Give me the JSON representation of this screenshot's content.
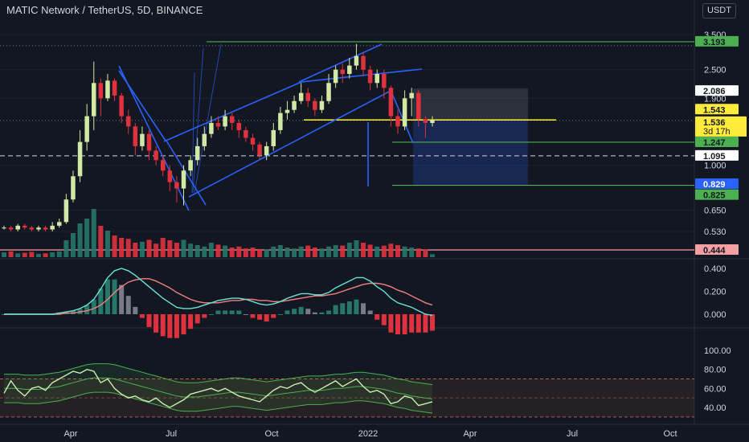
{
  "header": {
    "symbol_title": "MATIC Network / TetherUS, 5D, BINANCE",
    "currency_button": "USDT"
  },
  "colors": {
    "background": "#131722",
    "up_candle": "#d4e8a6",
    "down_candle": "#e0323e",
    "channel": "#2962ff",
    "target_green": "#4caf50",
    "price_yellow": "#ffeb3b",
    "volume_green": "#26776a",
    "volume_red": "#e0323e",
    "macd_line": "#69e2d6",
    "signal_line": "#f08080",
    "rsi_line": "#c8f0b0",
    "rsi_band": "#4caf50",
    "stop_pink": "#f4a0a0"
  },
  "price_axis": {
    "ticks": [
      "3.500",
      "2.500",
      "1.900",
      "1.000",
      "0.650",
      "0.530"
    ],
    "badges": [
      {
        "label": "3.193",
        "style": "green"
      },
      {
        "label": "2.086",
        "style": "white"
      },
      {
        "label": "1.543",
        "style": "yellow"
      },
      {
        "label": "1.536",
        "style": "yellow"
      },
      {
        "label": "3d 17h",
        "style": "yellow-sub"
      },
      {
        "label": "1.247",
        "style": "green"
      },
      {
        "label": "1.095",
        "style": "white"
      },
      {
        "label": "0.829",
        "style": "blue"
      },
      {
        "label": "0.825",
        "style": "green"
      },
      {
        "label": "0.444",
        "style": "pink"
      }
    ]
  },
  "macd_axis": {
    "ticks": [
      "0.400",
      "0.200",
      "0.000"
    ]
  },
  "rsi_axis": {
    "ticks": [
      "100.00",
      "80.00",
      "60.00",
      "40.00"
    ]
  },
  "time_axis": {
    "labels": [
      "Apr",
      "Jul",
      "Oct",
      "2022",
      "Apr",
      "Jul",
      "Oct"
    ]
  },
  "chart_data": [
    {
      "type": "candlestick",
      "title": "MATIC Network / TetherUS, 5D, BINANCE",
      "scale": "log",
      "ylim": [
        0.444,
        3.9
      ],
      "x_start": "2021-03-01",
      "x_end": "2022-11-01",
      "candles": [
        [
          0.55,
          0.55,
          0.56,
          0.54
        ],
        [
          0.55,
          0.54,
          0.56,
          0.53
        ],
        [
          0.54,
          0.56,
          0.57,
          0.53
        ],
        [
          0.56,
          0.55,
          0.57,
          0.54
        ],
        [
          0.55,
          0.54,
          0.56,
          0.53
        ],
        [
          0.54,
          0.55,
          0.56,
          0.53
        ],
        [
          0.55,
          0.54,
          0.56,
          0.53
        ],
        [
          0.54,
          0.56,
          0.58,
          0.53
        ],
        [
          0.56,
          0.58,
          0.6,
          0.55
        ],
        [
          0.58,
          0.72,
          0.76,
          0.57
        ],
        [
          0.72,
          0.9,
          0.95,
          0.7
        ],
        [
          0.9,
          1.25,
          1.4,
          0.85
        ],
        [
          1.25,
          1.6,
          1.8,
          1.15
        ],
        [
          1.6,
          2.2,
          2.7,
          1.4
        ],
        [
          2.2,
          1.9,
          2.3,
          1.6
        ],
        [
          1.9,
          2.25,
          2.4,
          1.85
        ],
        [
          2.25,
          1.95,
          2.3,
          1.85
        ],
        [
          1.95,
          1.6,
          2.0,
          1.5
        ],
        [
          1.6,
          1.45,
          1.7,
          1.35
        ],
        [
          1.45,
          1.2,
          1.5,
          1.1
        ],
        [
          1.2,
          1.35,
          1.45,
          1.15
        ],
        [
          1.35,
          1.15,
          1.4,
          1.05
        ],
        [
          1.15,
          1.05,
          1.2,
          1.0
        ],
        [
          1.05,
          0.95,
          1.1,
          0.9
        ],
        [
          0.95,
          0.85,
          1.0,
          0.78
        ],
        [
          0.85,
          0.8,
          0.9,
          0.7
        ],
        [
          0.8,
          0.95,
          1.0,
          0.68
        ],
        [
          0.95,
          1.05,
          1.1,
          0.9
        ],
        [
          1.05,
          1.2,
          1.3,
          1.0
        ],
        [
          1.2,
          1.35,
          1.45,
          1.15
        ],
        [
          1.35,
          1.5,
          1.6,
          1.3
        ],
        [
          1.5,
          1.45,
          1.6,
          1.4
        ],
        [
          1.45,
          1.6,
          1.7,
          1.4
        ],
        [
          1.6,
          1.5,
          1.65,
          1.4
        ],
        [
          1.5,
          1.4,
          1.55,
          1.3
        ],
        [
          1.4,
          1.3,
          1.45,
          1.25
        ],
        [
          1.3,
          1.22,
          1.35,
          1.15
        ],
        [
          1.22,
          1.1,
          1.25,
          1.05
        ],
        [
          1.1,
          1.2,
          1.25,
          1.05
        ],
        [
          1.2,
          1.4,
          1.5,
          1.15
        ],
        [
          1.4,
          1.65,
          1.75,
          1.35
        ],
        [
          1.65,
          1.7,
          1.85,
          1.55
        ],
        [
          1.7,
          1.85,
          1.95,
          1.65
        ],
        [
          1.85,
          2.0,
          2.2,
          1.8
        ],
        [
          2.0,
          1.85,
          2.1,
          1.75
        ],
        [
          1.85,
          1.7,
          1.9,
          1.6
        ],
        [
          1.7,
          1.85,
          1.95,
          1.65
        ],
        [
          1.85,
          2.2,
          2.4,
          1.8
        ],
        [
          2.2,
          2.5,
          2.6,
          2.1
        ],
        [
          2.5,
          2.4,
          2.65,
          2.2
        ],
        [
          2.4,
          2.6,
          2.8,
          2.3
        ],
        [
          2.6,
          2.85,
          3.2,
          2.5
        ],
        [
          2.85,
          2.5,
          2.95,
          2.35
        ],
        [
          2.5,
          2.2,
          2.6,
          2.05
        ],
        [
          2.2,
          2.4,
          2.5,
          2.1
        ],
        [
          2.4,
          2.1,
          2.5,
          1.9
        ],
        [
          2.1,
          1.6,
          2.15,
          1.45
        ],
        [
          1.6,
          1.45,
          1.7,
          1.35
        ],
        [
          1.45,
          1.9,
          2.05,
          1.4
        ],
        [
          1.9,
          2.0,
          2.1,
          1.6
        ],
        [
          2.0,
          1.55,
          2.05,
          1.45
        ],
        [
          1.55,
          1.5,
          1.6,
          1.3
        ],
        [
          1.5,
          1.536,
          1.6,
          1.45
        ]
      ],
      "volume": [
        0.1,
        0.12,
        0.08,
        0.09,
        0.11,
        0.07,
        0.08,
        0.1,
        0.12,
        0.35,
        0.5,
        0.7,
        0.8,
        1.0,
        0.65,
        0.55,
        0.45,
        0.4,
        0.38,
        0.3,
        0.32,
        0.36,
        0.28,
        0.4,
        0.35,
        0.3,
        0.36,
        0.28,
        0.25,
        0.22,
        0.3,
        0.26,
        0.24,
        0.2,
        0.22,
        0.18,
        0.2,
        0.17,
        0.16,
        0.22,
        0.25,
        0.2,
        0.18,
        0.22,
        0.24,
        0.2,
        0.18,
        0.22,
        0.25,
        0.24,
        0.3,
        0.35,
        0.3,
        0.26,
        0.22,
        0.24,
        0.28,
        0.25,
        0.22,
        0.2,
        0.18,
        0.16,
        0.06
      ],
      "annotations": [
        {
          "label": "3.193",
          "kind": "horizontal target line"
        },
        {
          "label": "1.543",
          "kind": "horizontal yellow line"
        },
        {
          "label": "1.247",
          "kind": "horizontal target line"
        },
        {
          "label": "1.095",
          "kind": "horizontal dashed line"
        },
        {
          "label": "0.825",
          "kind": "horizontal target line"
        },
        {
          "label": "rising channel",
          "kind": "parallel trend lines"
        },
        {
          "label": "short position",
          "kind": "risk/reward box 2.086 / 1.543 / 0.829"
        }
      ]
    },
    {
      "type": "line",
      "name": "MACD",
      "ylim": [
        -0.12,
        0.48
      ],
      "macd": [
        0.0,
        0.0,
        0.0,
        0.0,
        0.0,
        0.0,
        0.0,
        0.0,
        0.01,
        0.02,
        0.03,
        0.05,
        0.08,
        0.13,
        0.22,
        0.32,
        0.38,
        0.4,
        0.38,
        0.34,
        0.29,
        0.24,
        0.19,
        0.14,
        0.1,
        0.06,
        0.05,
        0.05,
        0.06,
        0.08,
        0.1,
        0.12,
        0.13,
        0.14,
        0.14,
        0.13,
        0.11,
        0.09,
        0.08,
        0.09,
        0.11,
        0.14,
        0.16,
        0.18,
        0.18,
        0.17,
        0.17,
        0.19,
        0.23,
        0.26,
        0.29,
        0.32,
        0.32,
        0.29,
        0.24,
        0.2,
        0.14,
        0.1,
        0.08,
        0.06,
        0.03,
        0.0,
        -0.01
      ],
      "signal": [
        0.0,
        0.0,
        0.0,
        0.0,
        0.0,
        0.0,
        0.0,
        0.0,
        0.0,
        0.01,
        0.01,
        0.02,
        0.03,
        0.05,
        0.08,
        0.13,
        0.19,
        0.24,
        0.28,
        0.3,
        0.31,
        0.31,
        0.29,
        0.26,
        0.23,
        0.19,
        0.16,
        0.13,
        0.11,
        0.1,
        0.1,
        0.1,
        0.11,
        0.12,
        0.12,
        0.13,
        0.13,
        0.12,
        0.12,
        0.11,
        0.11,
        0.12,
        0.13,
        0.14,
        0.15,
        0.16,
        0.16,
        0.17,
        0.18,
        0.2,
        0.22,
        0.24,
        0.26,
        0.27,
        0.27,
        0.26,
        0.24,
        0.21,
        0.19,
        0.16,
        0.13,
        0.1,
        0.08
      ],
      "histogram_colors": {
        "positive": "#26776a",
        "negative": "#e0323e",
        "fading": "#787b86"
      }
    },
    {
      "type": "line",
      "name": "RSI",
      "ylim": [
        30,
        100
      ],
      "bands": [
        30,
        70
      ],
      "rsi": [
        55,
        68,
        58,
        52,
        60,
        62,
        58,
        66,
        70,
        74,
        78,
        76,
        80,
        78,
        66,
        70,
        60,
        54,
        50,
        52,
        48,
        46,
        50,
        44,
        40,
        44,
        48,
        54,
        56,
        58,
        60,
        57,
        60,
        56,
        52,
        50,
        48,
        46,
        52,
        58,
        62,
        60,
        64,
        66,
        60,
        56,
        60,
        64,
        68,
        62,
        66,
        70,
        62,
        56,
        58,
        54,
        44,
        46,
        52,
        50,
        42,
        44,
        46
      ],
      "rsi_ma": [
        60,
        60,
        60,
        59,
        59,
        59,
        60,
        61,
        62,
        64,
        66,
        68,
        70,
        71,
        71,
        71,
        70,
        68,
        66,
        64,
        62,
        60,
        58,
        56,
        54,
        52,
        51,
        51,
        51,
        52,
        53,
        54,
        55,
        56,
        56,
        55,
        54,
        53,
        52,
        53,
        54,
        55,
        56,
        57,
        58,
        58,
        58,
        59,
        60,
        60,
        61,
        62,
        62,
        61,
        60,
        59,
        57,
        55,
        54,
        52,
        51,
        50,
        49
      ]
    }
  ]
}
